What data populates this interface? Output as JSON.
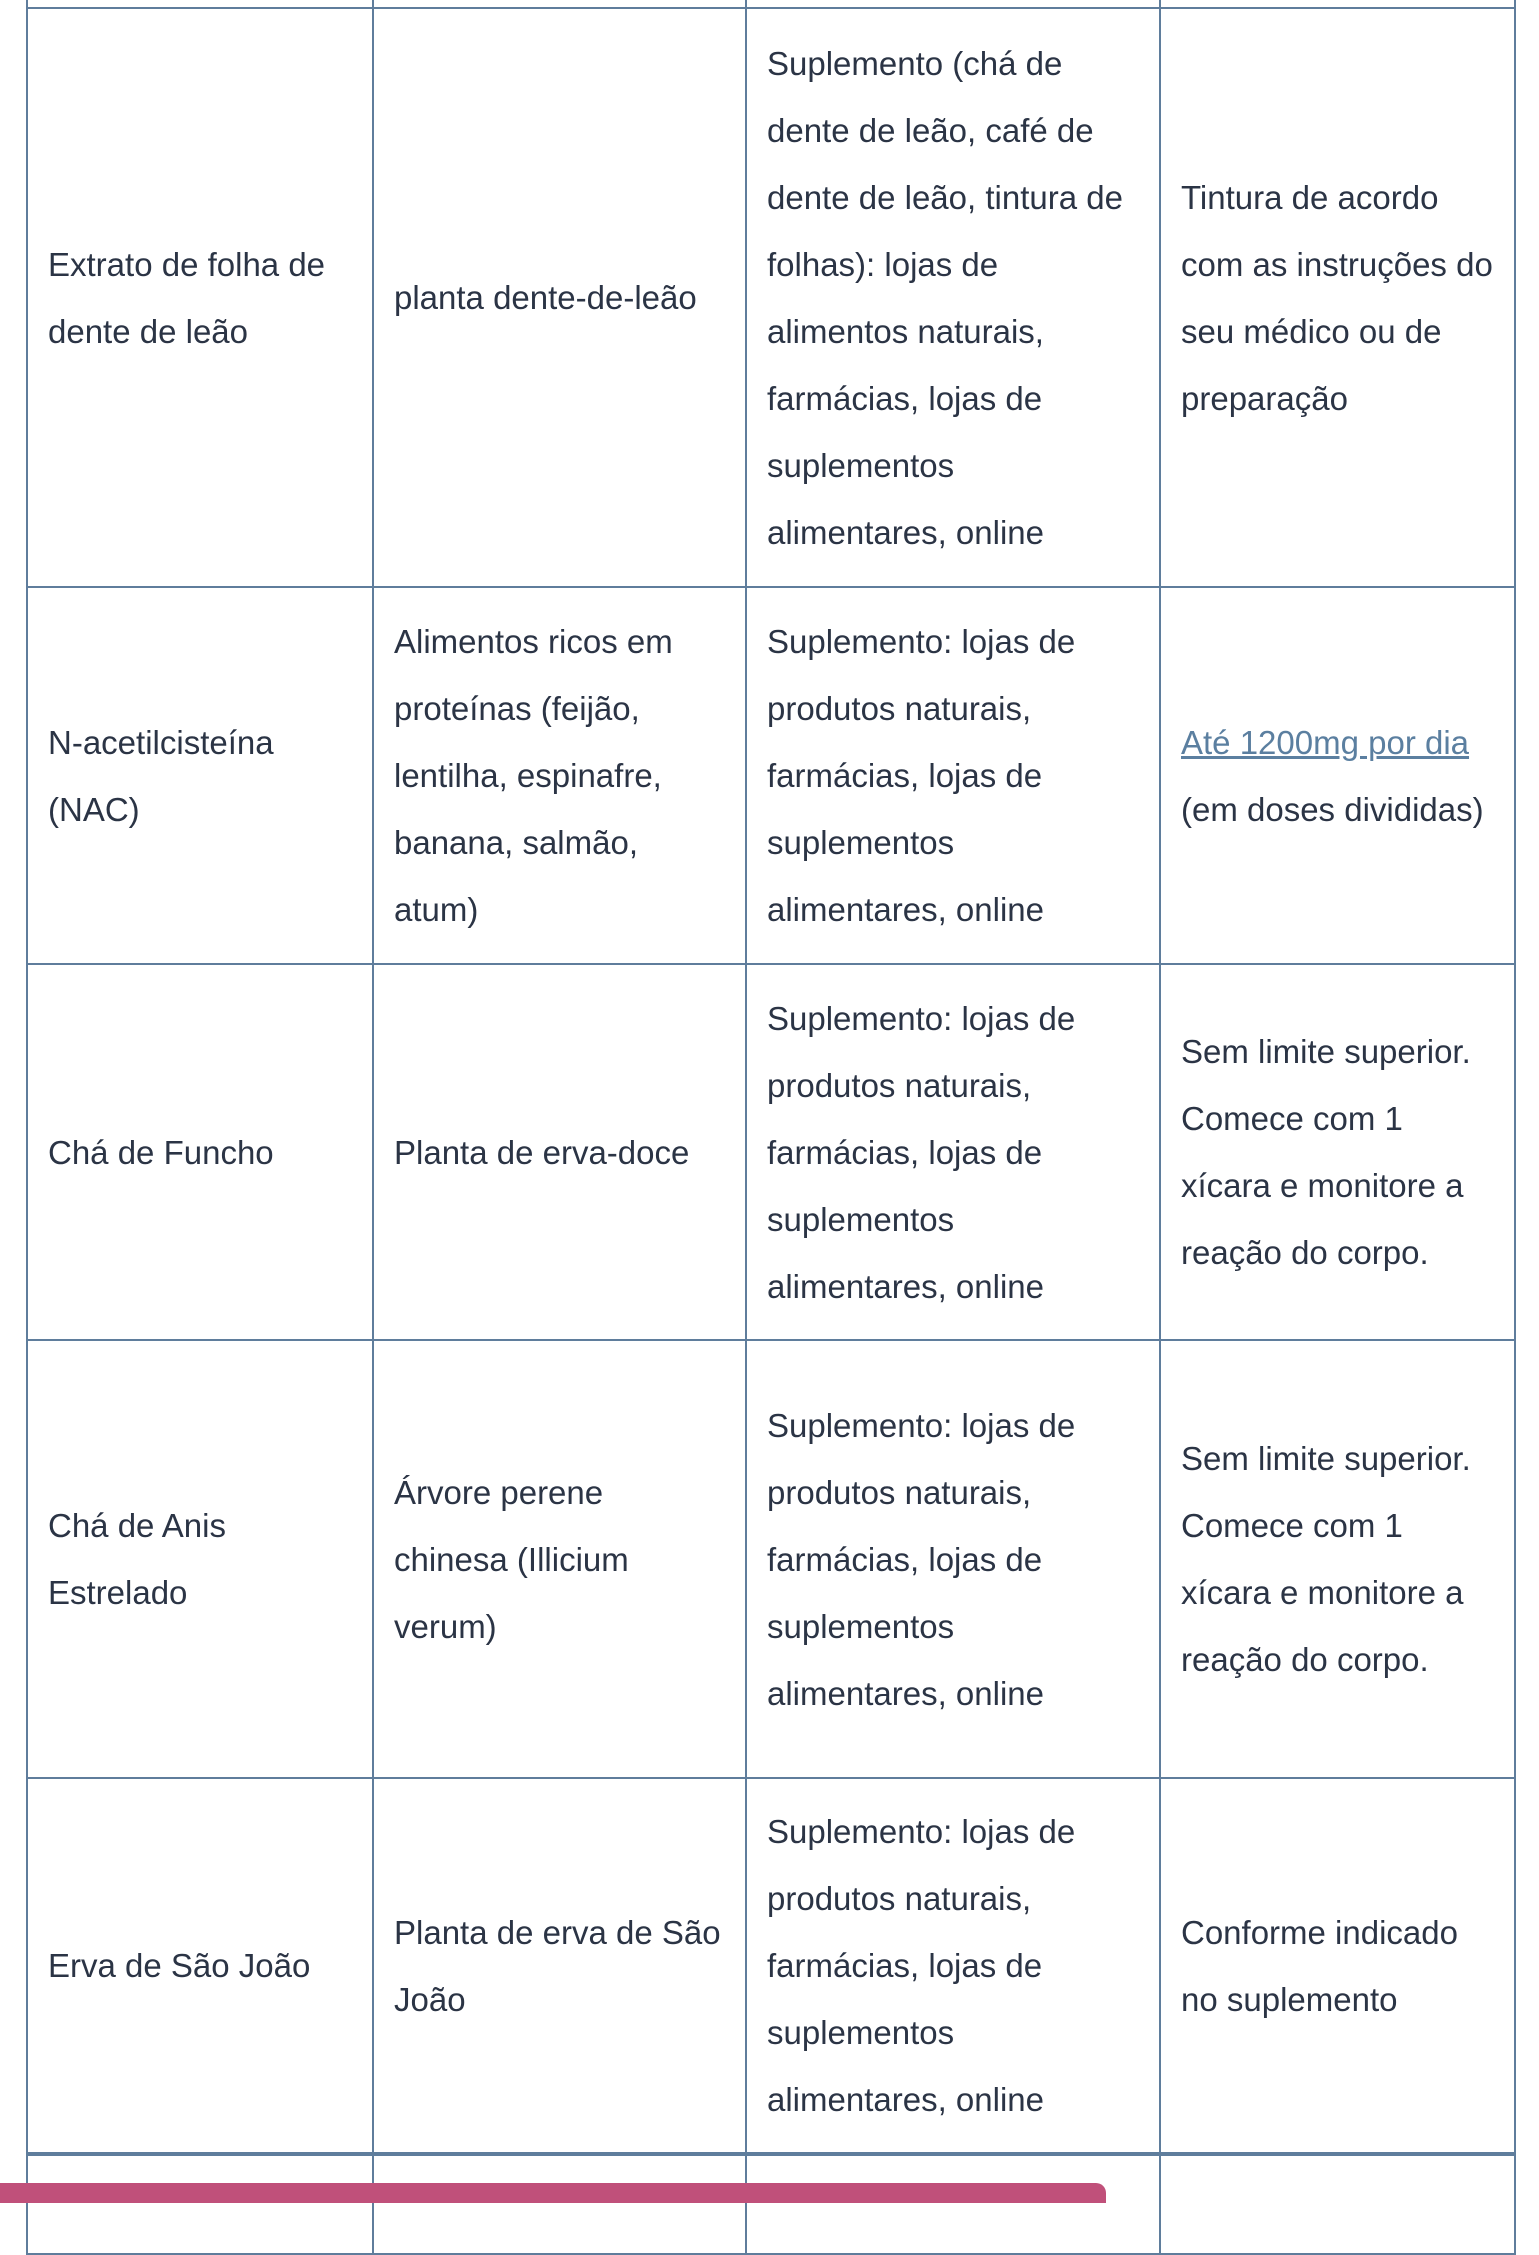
{
  "table": {
    "rows": [
      {
        "name": "",
        "source": "",
        "where": "",
        "dose": ""
      },
      {
        "name": "Extrato de folha de dente de leão",
        "source": "planta dente-de-leão",
        "where": "Suplemento (chá de dente de leão, café de dente de leão, tintura de folhas): lojas de alimentos naturais, farmácias, lojas de suplementos alimentares, online",
        "dose": "Tintura de acordo com as instruções do seu médico ou de preparação"
      },
      {
        "name": "N-acetilcisteína (NAC)",
        "source": "Alimentos ricos em proteínas (feijão, lentilha, espinafre, banana, salmão, atum)",
        "where": "Suplemento: lojas de produtos naturais, farmácias, lojas de suplementos alimentares, online",
        "dose_link": "Até 1200mg por dia",
        "dose": " (em doses divididas)"
      },
      {
        "name": "Chá de Funcho",
        "source": "Planta de erva-doce",
        "where": "Suplemento: lojas de produtos naturais, farmácias, lojas de suplementos alimentares, online",
        "dose": "Sem limite superior. Comece com 1 xícara e monitore a reação do corpo."
      },
      {
        "name": "Chá de Anis Estrelado",
        "source": "Árvore perene chinesa (Illicium verum)",
        "where": "Suplemento: lojas de produtos naturais, farmácias, lojas de suplementos alimentares, online",
        "dose": "Sem limite superior. Comece com 1 xícara e monitore a reação do corpo."
      },
      {
        "name": "Erva de São João",
        "source": "Planta de erva de São João",
        "where": "Suplemento: lojas de produtos naturais, farmácias, lojas de suplementos alimentares, online",
        "dose": "Conforme indicado no suplemento"
      },
      {
        "name": "",
        "source": "",
        "where": "",
        "dose": ""
      }
    ]
  },
  "colors": {
    "border": "#5f7d9c",
    "text": "#2b3445",
    "link": "#5b7fa0",
    "bottom_bar": "#c0507a"
  }
}
